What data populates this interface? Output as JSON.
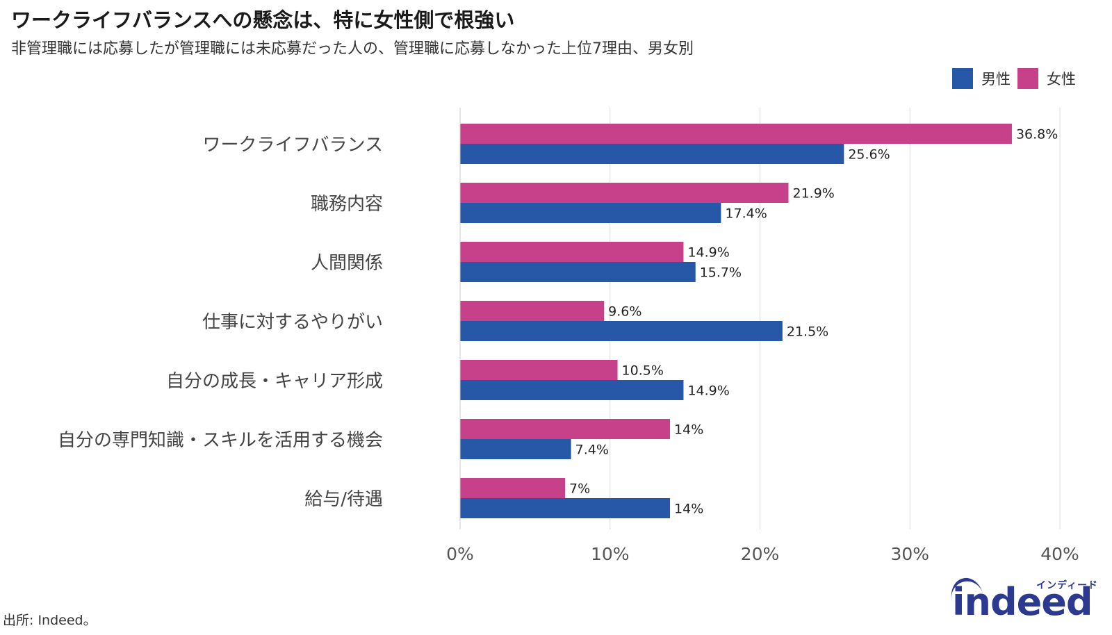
{
  "header": {
    "title": "ワークライフバランスへの懸念は、特に女性側で根強い",
    "subtitle": "非管理職には応募したが管理職には未応募だった人の、管理職に応募しなかった上位7理由、男女別"
  },
  "legend": {
    "items": [
      {
        "label": "男性",
        "color": "#2757a7"
      },
      {
        "label": "女性",
        "color": "#c7408a"
      }
    ]
  },
  "chart_data": {
    "type": "bar",
    "orientation": "horizontal",
    "categories": [
      "ワークライフバランス",
      "職務内容",
      "人間関係",
      "仕事に対するやりがい",
      "自分の成長・キャリア形成",
      "自分の専門知識・スキルを活用する機会",
      "給与/待遇"
    ],
    "series": [
      {
        "name": "女性",
        "color": "#c7408a",
        "values": [
          36.8,
          21.9,
          14.9,
          9.6,
          10.5,
          14,
          7
        ]
      },
      {
        "name": "男性",
        "color": "#2757a7",
        "values": [
          25.6,
          17.4,
          15.7,
          21.5,
          14.9,
          7.4,
          14
        ]
      }
    ],
    "value_labels": [
      [
        "36.8%",
        "21.9%",
        "14.9%",
        "9.6%",
        "10.5%",
        "14%",
        "7%"
      ],
      [
        "25.6%",
        "17.4%",
        "15.7%",
        "21.5%",
        "14.9%",
        "7.4%",
        "14%"
      ]
    ],
    "xlim": [
      0,
      40
    ],
    "xticks": [
      0,
      10,
      20,
      30,
      40
    ],
    "xtick_labels": [
      "0%",
      "10%",
      "20%",
      "30%",
      "40%"
    ],
    "grid": "vertical",
    "legend_position": "top-right"
  },
  "footer": {
    "source": "出所: Indeed。",
    "logo_kana": "インディード",
    "logo_word": "indeed"
  }
}
